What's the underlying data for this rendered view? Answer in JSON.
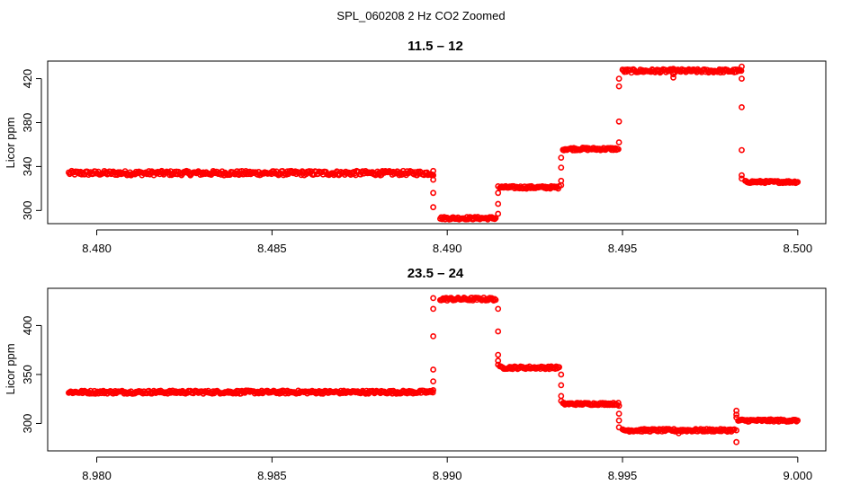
{
  "figure": {
    "title": "SPL_060208  2 Hz CO2 Zoomed"
  },
  "colors": {
    "points": "#ff0000"
  },
  "chart_data": [
    {
      "type": "scatter",
      "title": "11.5 – 12",
      "xlabel": "",
      "ylabel": "Licor ppm",
      "xlim": [
        8.4786,
        8.5008
      ],
      "ylim": [
        288,
        436
      ],
      "xticks": [
        8.48,
        8.485,
        8.49,
        8.495,
        8.5
      ],
      "xtick_labels": [
        "8.480",
        "8.485",
        "8.490",
        "8.495",
        "8.500"
      ],
      "yticks": [
        300,
        340,
        380,
        420
      ],
      "ytick_labels": [
        "300",
        "340",
        "380",
        "420"
      ],
      "grid": false,
      "marker": "open-circle",
      "segments": [
        {
          "x0": 8.4792,
          "x1": 8.4896,
          "y": 334,
          "spread": 2.0
        },
        {
          "x0": 8.4898,
          "x1": 8.4914,
          "y": 293,
          "spread": 1.2
        },
        {
          "x0": 8.4915,
          "x1": 8.4932,
          "y": 321,
          "spread": 1.2
        },
        {
          "x0": 8.4933,
          "x1": 8.4949,
          "y": 356,
          "spread": 1.2
        },
        {
          "x0": 8.495,
          "x1": 8.4984,
          "y": 427,
          "spread": 1.6
        },
        {
          "x0": 8.4985,
          "x1": 8.5,
          "y": 326,
          "spread": 1.0
        }
      ],
      "transitions": [
        {
          "x": 8.4896,
          "values": [
            336,
            332,
            328,
            316,
            303
          ]
        },
        {
          "x": 8.49145,
          "values": [
            297,
            306,
            316,
            322
          ]
        },
        {
          "x": 8.49325,
          "values": [
            323,
            327,
            339,
            348
          ]
        },
        {
          "x": 8.4949,
          "values": [
            362,
            381,
            413,
            420
          ]
        },
        {
          "x": 8.49645,
          "values": [
            421,
            424,
            429
          ]
        },
        {
          "x": 8.4984,
          "values": [
            431,
            420,
            394,
            355,
            332,
            329
          ]
        }
      ]
    },
    {
      "type": "scatter",
      "title": "23.5 – 24",
      "xlabel": "",
      "ylabel": "Licor ppm",
      "xlim": [
        8.9786,
        9.0008
      ],
      "ylim": [
        272,
        438
      ],
      "xticks": [
        8.98,
        8.985,
        8.99,
        8.995,
        9.0
      ],
      "xtick_labels": [
        "8.980",
        "8.985",
        "8.990",
        "8.995",
        "9.000"
      ],
      "yticks": [
        300,
        350,
        400
      ],
      "ytick_labels": [
        "300",
        "350",
        "400"
      ],
      "grid": false,
      "marker": "open-circle",
      "segments": [
        {
          "x0": 8.9792,
          "x1": 8.9896,
          "y": 332,
          "spread": 1.6
        },
        {
          "x0": 8.9898,
          "x1": 8.9914,
          "y": 427,
          "spread": 1.6
        },
        {
          "x0": 8.9915,
          "x1": 8.9932,
          "y": 357,
          "spread": 1.4
        },
        {
          "x0": 8.9933,
          "x1": 8.9949,
          "y": 320,
          "spread": 1.2
        },
        {
          "x0": 8.995,
          "x1": 8.9982,
          "y": 293,
          "spread": 1.4
        },
        {
          "x0": 8.9983,
          "x1": 9.0,
          "y": 303,
          "spread": 1.2
        }
      ],
      "transitions": [
        {
          "x": 8.9896,
          "values": [
            334,
            343,
            355,
            389,
            417,
            428
          ]
        },
        {
          "x": 8.99145,
          "values": [
            417,
            394,
            370,
            364,
            360
          ]
        },
        {
          "x": 8.99325,
          "values": [
            350,
            339,
            328,
            323
          ]
        },
        {
          "x": 8.9949,
          "values": [
            318,
            310,
            303,
            296
          ]
        },
        {
          "x": 8.9966,
          "values": [
            290
          ]
        },
        {
          "x": 8.99825,
          "values": [
            281,
            293,
            309,
            313,
            306
          ]
        }
      ]
    }
  ]
}
